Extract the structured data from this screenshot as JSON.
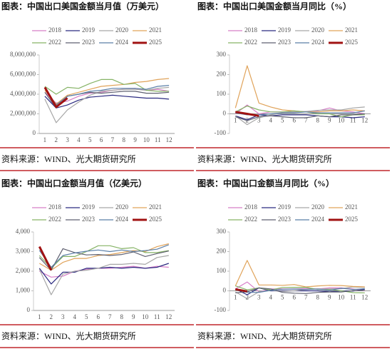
{
  "chart_data": [
    {
      "type": "line",
      "title": "图表：中国出口美国金额当月值（万美元）",
      "source": "资料来源：WIND、光大期货研究所",
      "categories": [
        "1",
        "2",
        "3",
        "4",
        "5",
        "6",
        "7",
        "8",
        "9",
        "10",
        "11",
        "12"
      ],
      "ylim": [
        0,
        8000000
      ],
      "yticks": [
        0,
        {
          "value": 2000000,
          "label": "2,000,000"
        },
        {
          "value": 4000000,
          "label": "4,000,000"
        },
        {
          "value": 6000000,
          "label": "6,000,000"
        },
        {
          "value": 8000000,
          "label": "8,000,000"
        }
      ],
      "series": [
        {
          "name": "2018",
          "color": "#d77fc8",
          "values": [
            4200000,
            3100000,
            3300000,
            3800000,
            4100000,
            4200000,
            4400000,
            4500000,
            4600000,
            4400000,
            4500000,
            4300000
          ]
        },
        {
          "name": "2019",
          "color": "#2b2a80",
          "values": [
            3800000,
            2600000,
            2900000,
            3400000,
            3700000,
            3800000,
            3900000,
            3800000,
            3700000,
            3600000,
            3600000,
            3500000
          ]
        },
        {
          "name": "2020",
          "color": "#a6a6a6",
          "values": [
            3500000,
            1100000,
            2400000,
            3200000,
            3900000,
            4300000,
            4400000,
            4500000,
            4500000,
            4400000,
            4600000,
            4700000
          ]
        },
        {
          "name": "2021",
          "color": "#e0a35a",
          "values": [
            4400000,
            3000000,
            3900000,
            4200000,
            4500000,
            4800000,
            4900000,
            5000000,
            5200000,
            5300000,
            5500000,
            5600000
          ]
        },
        {
          "name": "2022",
          "color": "#86b366",
          "values": [
            4800000,
            4000000,
            4700000,
            4600000,
            5100000,
            5500000,
            5500000,
            5000000,
            5100000,
            4400000,
            4300000,
            4300000
          ]
        },
        {
          "name": "2023",
          "color": "#5f6070",
          "values": [
            4200000,
            2600000,
            3800000,
            4000000,
            4200000,
            4100000,
            4200000,
            4300000,
            4300000,
            4100000,
            4100000,
            4200000
          ]
        },
        {
          "name": "2024",
          "color": "#5b7fa8",
          "values": [
            4600000,
            2900000,
            3800000,
            4000000,
            4300000,
            4400000,
            4600000,
            4600000,
            4600000,
            4500000,
            4800000,
            4900000
          ]
        },
        {
          "name": "2025",
          "color": "#a01212",
          "values": [
            4700000,
            2700000,
            3600000,
            null,
            null,
            null,
            null,
            null,
            null,
            null,
            null,
            null
          ]
        }
      ]
    },
    {
      "type": "line",
      "title": "图表：中国出口美国金额当月同比（%）",
      "source": "资料来源：WIND、光大期货研究所",
      "categories": [
        "1",
        "2",
        "3",
        "4",
        "5",
        "6",
        "7",
        "8",
        "9",
        "10",
        "11",
        "12"
      ],
      "ylim": [
        -100,
        300
      ],
      "yticks": [
        -100,
        0,
        100,
        200,
        300
      ],
      "series": [
        {
          "name": "2018",
          "color": "#d77fc8",
          "values": [
            0,
            45,
            0,
            10,
            10,
            10,
            12,
            15,
            30,
            15,
            10,
            0
          ]
        },
        {
          "name": "2019",
          "color": "#2b2a80",
          "values": [
            -10,
            -30,
            -5,
            -10,
            -5,
            -5,
            -5,
            -10,
            -15,
            -15,
            -20,
            -15
          ]
        },
        {
          "name": "2020",
          "color": "#a6a6a6",
          "values": [
            -10,
            -55,
            -20,
            -5,
            5,
            10,
            12,
            18,
            20,
            20,
            30,
            35
          ]
        },
        {
          "name": "2021",
          "color": "#e0a35a",
          "values": [
            30,
            245,
            55,
            35,
            20,
            15,
            10,
            10,
            15,
            15,
            20,
            15
          ]
        },
        {
          "name": "2022",
          "color": "#86b366",
          "values": [
            10,
            40,
            20,
            10,
            10,
            15,
            10,
            0,
            0,
            -15,
            -5,
            -5
          ]
        },
        {
          "name": "2023",
          "color": "#5f6070",
          "values": [
            -15,
            -35,
            -15,
            -10,
            -15,
            -20,
            -20,
            -10,
            -15,
            -5,
            -5,
            0
          ]
        },
        {
          "name": "2024",
          "color": "#5b7fa8",
          "values": [
            5,
            -5,
            -5,
            0,
            5,
            5,
            10,
            5,
            5,
            5,
            5,
            15
          ]
        },
        {
          "name": "2025",
          "color": "#a01212",
          "values": [
            10,
            0,
            -10,
            null,
            null,
            null,
            null,
            null,
            null,
            null,
            null,
            null
          ]
        }
      ]
    },
    {
      "type": "line",
      "title": "图表：中国出口金额当月值（亿美元）",
      "source": "资料来源：WIND、光大期货研究所",
      "categories": [
        "1",
        "2",
        "3",
        "4",
        "5",
        "6",
        "7",
        "8",
        "9",
        "10",
        "11",
        "12"
      ],
      "ylim": [
        0,
        4000
      ],
      "yticks": [
        0,
        {
          "value": 1000,
          "label": "1,000"
        },
        {
          "value": 2000,
          "label": "2,000"
        },
        {
          "value": 3000,
          "label": "3,000"
        },
        {
          "value": 4000,
          "label": "4,000"
        }
      ],
      "series": [
        {
          "name": "2018",
          "color": "#d77fc8",
          "values": [
            2000,
            1700,
            1750,
            2000,
            2100,
            2150,
            2150,
            2200,
            2250,
            2150,
            2250,
            2200
          ]
        },
        {
          "name": "2019",
          "color": "#2b2a80",
          "values": [
            2150,
            1350,
            1950,
            1950,
            2150,
            2150,
            2200,
            2150,
            2200,
            2150,
            2200,
            2400
          ]
        },
        {
          "name": "2020",
          "color": "#a6a6a6",
          "values": [
            2100,
            800,
            1850,
            2000,
            2050,
            2150,
            2350,
            2350,
            2400,
            2350,
            2700,
            2800
          ]
        },
        {
          "name": "2021",
          "color": "#e0a35a",
          "values": [
            2400,
            2050,
            2450,
            2650,
            2650,
            2800,
            2850,
            2950,
            3050,
            3000,
            3250,
            3400
          ]
        },
        {
          "name": "2022",
          "color": "#86b366",
          "values": [
            2800,
            2150,
            2750,
            2750,
            3000,
            3300,
            3300,
            3150,
            3200,
            2950,
            2950,
            3050
          ]
        },
        {
          "name": "2023",
          "color": "#5f6070",
          "values": [
            2700,
            2050,
            3150,
            2950,
            2830,
            2850,
            2800,
            2850,
            2980,
            2750,
            2900,
            3030
          ]
        },
        {
          "name": "2024",
          "color": "#5b7fa8",
          "values": [
            3060,
            2200,
            2800,
            2930,
            3020,
            3080,
            3000,
            3080,
            3000,
            3050,
            3120,
            3350
          ]
        },
        {
          "name": "2025",
          "color": "#a01212",
          "values": [
            3250,
            2050,
            null,
            null,
            null,
            null,
            null,
            null,
            null,
            null,
            null,
            null
          ]
        }
      ]
    },
    {
      "type": "line",
      "title": "图表：中国出口金额当月同比（%）",
      "source": "资料来源：WIND、光大期货研究所",
      "categories": [
        "1",
        "2",
        "3",
        "4",
        "5",
        "6",
        "7",
        "8",
        "9",
        "10",
        "11",
        "12"
      ],
      "ylim": [
        -100,
        300
      ],
      "yticks": [
        -100,
        0,
        100,
        200,
        300
      ],
      "series": [
        {
          "name": "2018",
          "color": "#d77fc8",
          "values": [
            10,
            45,
            -5,
            10,
            10,
            10,
            12,
            10,
            15,
            15,
            10,
            0
          ]
        },
        {
          "name": "2019",
          "color": "#2b2a80",
          "values": [
            10,
            -20,
            15,
            0,
            0,
            0,
            0,
            0,
            -5,
            0,
            -1,
            8
          ]
        },
        {
          "name": "2020",
          "color": "#a6a6a6",
          "values": [
            -5,
            -40,
            -5,
            3,
            -3,
            0,
            7,
            10,
            10,
            11,
            20,
            18
          ]
        },
        {
          "name": "2021",
          "color": "#e0a35a",
          "values": [
            25,
            155,
            30,
            30,
            28,
            32,
            20,
            25,
            28,
            27,
            22,
            20
          ]
        },
        {
          "name": "2022",
          "color": "#86b366",
          "values": [
            25,
            5,
            15,
            4,
            17,
            18,
            18,
            7,
            6,
            0,
            -9,
            -10
          ]
        },
        {
          "name": "2023",
          "color": "#5f6070",
          "values": [
            -10,
            -5,
            15,
            10,
            -8,
            -12,
            -14,
            -8,
            -6,
            -6,
            1,
            2
          ]
        },
        {
          "name": "2024",
          "color": "#5b7fa8",
          "values": [
            8,
            -8,
            -8,
            2,
            8,
            9,
            7,
            9,
            2,
            13,
            7,
            11
          ]
        },
        {
          "name": "2025",
          "color": "#a01212",
          "values": [
            8,
            -3,
            null,
            null,
            null,
            null,
            null,
            null,
            null,
            null,
            null,
            null
          ]
        }
      ]
    }
  ]
}
